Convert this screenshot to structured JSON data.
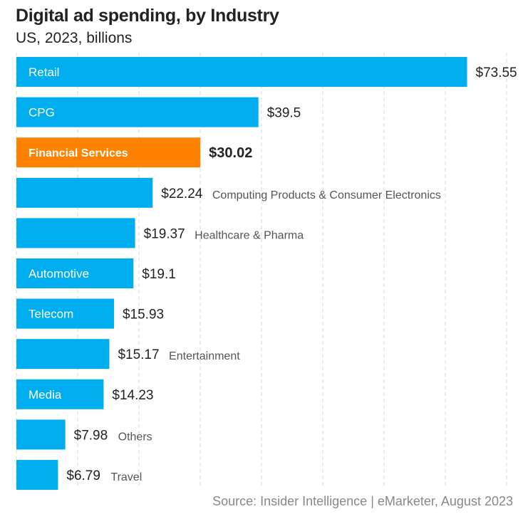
{
  "title": "Digital ad spending, by Industry",
  "subtitle": "US, 2023, billions",
  "source": "Source: Insider Intelligence | eMarketer, August 2023",
  "colors": {
    "bar": "#00aeef",
    "highlight": "#ff8200",
    "grid": "#d9d9d9",
    "value_text": "#222222",
    "outside_label": "#555555"
  },
  "chart_data": {
    "type": "bar",
    "orientation": "horizontal",
    "xlim": [
      0,
      80
    ],
    "grid": true,
    "highlight": "Financial Services",
    "categories": [
      "Retail",
      "CPG",
      "Financial Services",
      "Computing Products & Consumer Electronics",
      "Healthcare & Pharma",
      "Automotive",
      "Telecom",
      "Entertainment",
      "Media",
      "Others",
      "Travel"
    ],
    "values": [
      73.55,
      39.5,
      30.02,
      22.24,
      19.37,
      19.1,
      15.93,
      15.17,
      14.23,
      7.98,
      6.79
    ],
    "value_labels": [
      "$73.55",
      "$39.5",
      "$30.02",
      "$22.24",
      "$19.37",
      "$19.1",
      "$15.93",
      "$15.17",
      "$14.23",
      "$7.98",
      "$6.79"
    ]
  }
}
